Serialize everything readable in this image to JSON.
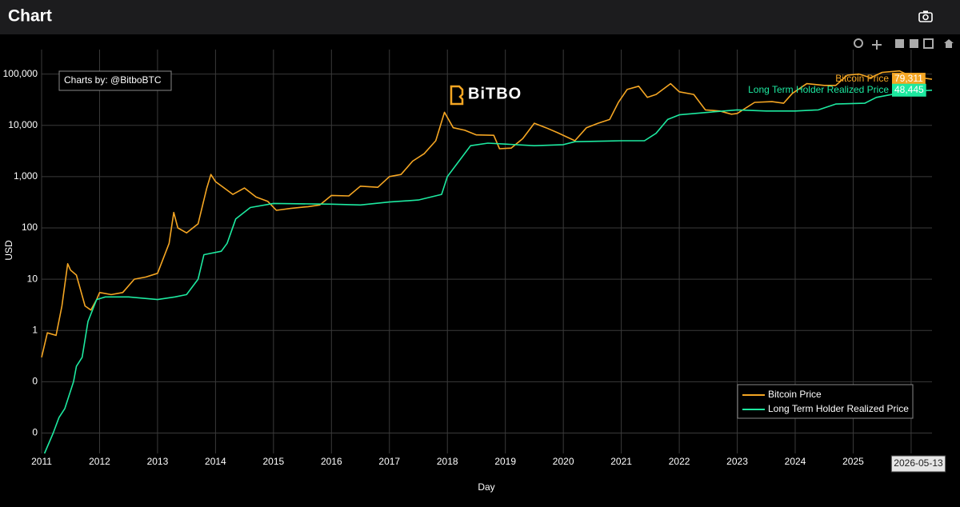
{
  "header": {
    "title": "Chart"
  },
  "chart_data": {
    "type": "line",
    "credit": "Charts by: @BitboBTC",
    "watermark": "BiTBO",
    "x_label": "Day",
    "y_label": "USD",
    "hover_label": "2026-05-13",
    "log_y": true,
    "grid": true,
    "legend_position": "bottom-right",
    "xlim": [
      2011,
      2026.36
    ],
    "xticks": [
      2011,
      2012,
      2013,
      2014,
      2015,
      2016,
      2017,
      2018,
      2019,
      2020,
      2021,
      2022,
      2023,
      2024,
      2025,
      2026
    ],
    "ylim": [
      0.004,
      300000
    ],
    "yticks": [
      {
        "value": 0.01,
        "label": "0"
      },
      {
        "value": 0.1,
        "label": "0"
      },
      1,
      10,
      100,
      {
        "value": 1000,
        "label": "1,000"
      },
      {
        "value": 10000,
        "label": "10,000"
      },
      {
        "value": 100000,
        "label": "100,000"
      }
    ],
    "series": [
      {
        "name": "Bitcoin Price",
        "color": "#f5a623",
        "end_label": "79,311",
        "x": [
          2011.0,
          2011.1,
          2011.25,
          2011.35,
          2011.45,
          2011.5,
          2011.6,
          2011.75,
          2011.85,
          2011.95,
          2012.0,
          2012.2,
          2012.4,
          2012.6,
          2012.8,
          2013.0,
          2013.2,
          2013.28,
          2013.35,
          2013.5,
          2013.7,
          2013.85,
          2013.92,
          2014.0,
          2014.15,
          2014.3,
          2014.5,
          2014.7,
          2014.9,
          2015.05,
          2015.3,
          2015.6,
          2015.8,
          2016.0,
          2016.3,
          2016.5,
          2016.8,
          2017.0,
          2017.2,
          2017.4,
          2017.6,
          2017.8,
          2017.95,
          2018.1,
          2018.3,
          2018.5,
          2018.8,
          2018.9,
          2019.1,
          2019.3,
          2019.5,
          2019.7,
          2019.9,
          2020.2,
          2020.4,
          2020.6,
          2020.8,
          2020.95,
          2021.1,
          2021.3,
          2021.45,
          2021.6,
          2021.85,
          2022.0,
          2022.25,
          2022.45,
          2022.7,
          2022.9,
          2023.0,
          2023.3,
          2023.6,
          2023.8,
          2023.95,
          2024.2,
          2024.5,
          2024.7,
          2024.9,
          2025.1,
          2025.3,
          2025.5,
          2025.8,
          2026.0,
          2026.36
        ],
        "values": [
          0.3,
          0.9,
          0.8,
          3,
          20,
          15,
          12,
          3,
          2.5,
          4,
          5.5,
          5,
          5.5,
          10,
          11,
          13,
          50,
          200,
          100,
          80,
          120,
          600,
          1100,
          800,
          600,
          450,
          600,
          400,
          330,
          220,
          240,
          260,
          280,
          430,
          420,
          650,
          620,
          1000,
          1100,
          2000,
          2800,
          5000,
          18000,
          9000,
          8000,
          6500,
          6400,
          3500,
          3600,
          5500,
          11000,
          9000,
          7200,
          5000,
          9000,
          11000,
          13000,
          28000,
          50000,
          58000,
          35000,
          40000,
          65000,
          45000,
          40000,
          20000,
          19000,
          16500,
          17000,
          28000,
          29000,
          27000,
          42000,
          65000,
          60000,
          60000,
          95000,
          100000,
          85000,
          108000,
          115000,
          90000,
          79311
        ]
      },
      {
        "name": "Long Term Holder Realized Price",
        "color": "#1de9a0",
        "end_label": "48,445",
        "x": [
          2011.05,
          2011.2,
          2011.3,
          2011.4,
          2011.55,
          2011.6,
          2011.7,
          2011.8,
          2011.95,
          2012.1,
          2012.5,
          2013.0,
          2013.3,
          2013.5,
          2013.7,
          2013.8,
          2014.1,
          2014.2,
          2014.35,
          2014.6,
          2015.0,
          2016.0,
          2016.5,
          2017.0,
          2017.5,
          2017.9,
          2018.0,
          2018.2,
          2018.4,
          2018.7,
          2019.0,
          2019.5,
          2020.0,
          2020.2,
          2021.0,
          2021.4,
          2021.6,
          2021.8,
          2022.0,
          2022.5,
          2023.0,
          2023.5,
          2024.0,
          2024.4,
          2024.7,
          2025.2,
          2025.4,
          2025.9,
          2026.36
        ],
        "values": [
          0.004,
          0.01,
          0.02,
          0.03,
          0.1,
          0.2,
          0.3,
          1.5,
          4,
          4.5,
          4.5,
          4,
          4.5,
          5,
          10,
          30,
          35,
          50,
          150,
          250,
          300,
          290,
          280,
          320,
          350,
          450,
          1000,
          2000,
          4000,
          4500,
          4300,
          4000,
          4200,
          4800,
          5000,
          5000,
          7000,
          13000,
          16000,
          18000,
          20000,
          19000,
          19000,
          20000,
          26000,
          27000,
          35000,
          45000,
          48445
        ]
      }
    ]
  }
}
